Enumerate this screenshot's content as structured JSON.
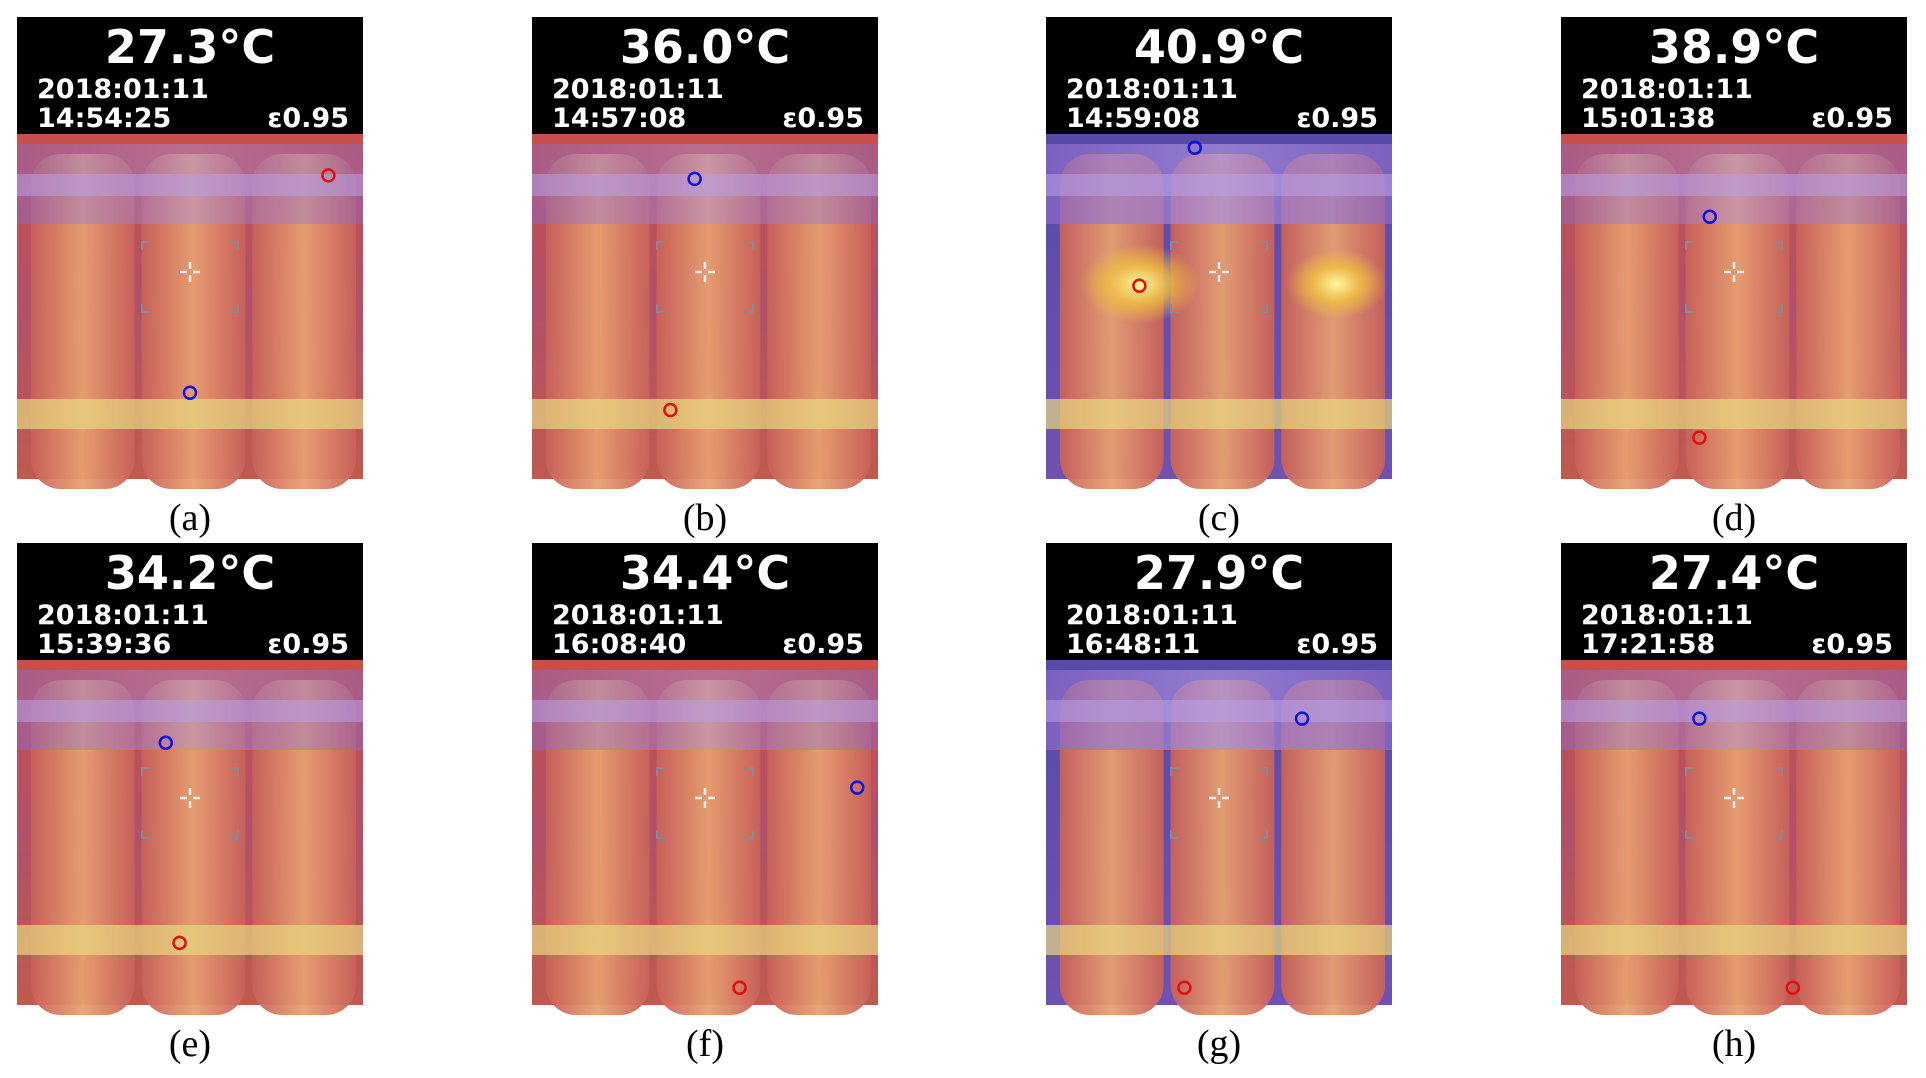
{
  "panels": [
    {
      "label": "(a)",
      "temperature": "27.3°C",
      "date": "2018:01:11",
      "time": "14:54:25",
      "emissivity": "ε0.95"
    },
    {
      "label": "(b)",
      "temperature": "36.0°C",
      "date": "2018:01:11",
      "time": "14:57:08",
      "emissivity": "ε0.95"
    },
    {
      "label": "(c)",
      "temperature": "40.9°C",
      "date": "2018:01:11",
      "time": "14:59:08",
      "emissivity": "ε0.95"
    },
    {
      "label": "(d)",
      "temperature": "38.9°C",
      "date": "2018:01:11",
      "time": "15:01:38",
      "emissivity": "ε0.95"
    },
    {
      "label": "(e)",
      "temperature": "34.2°C",
      "date": "2018:01:11",
      "time": "15:39:36",
      "emissivity": "ε0.95"
    },
    {
      "label": "(f)",
      "temperature": "34.4°C",
      "date": "2018:01:11",
      "time": "16:08:40",
      "emissivity": "ε0.95"
    },
    {
      "label": "(g)",
      "temperature": "27.9°C",
      "date": "2018:01:11",
      "time": "16:48:11",
      "emissivity": "ε0.95"
    },
    {
      "label": "(h)",
      "temperature": "27.4°C",
      "date": "2018:01:11",
      "time": "17:21:58",
      "emissivity": "ε0.95"
    }
  ]
}
